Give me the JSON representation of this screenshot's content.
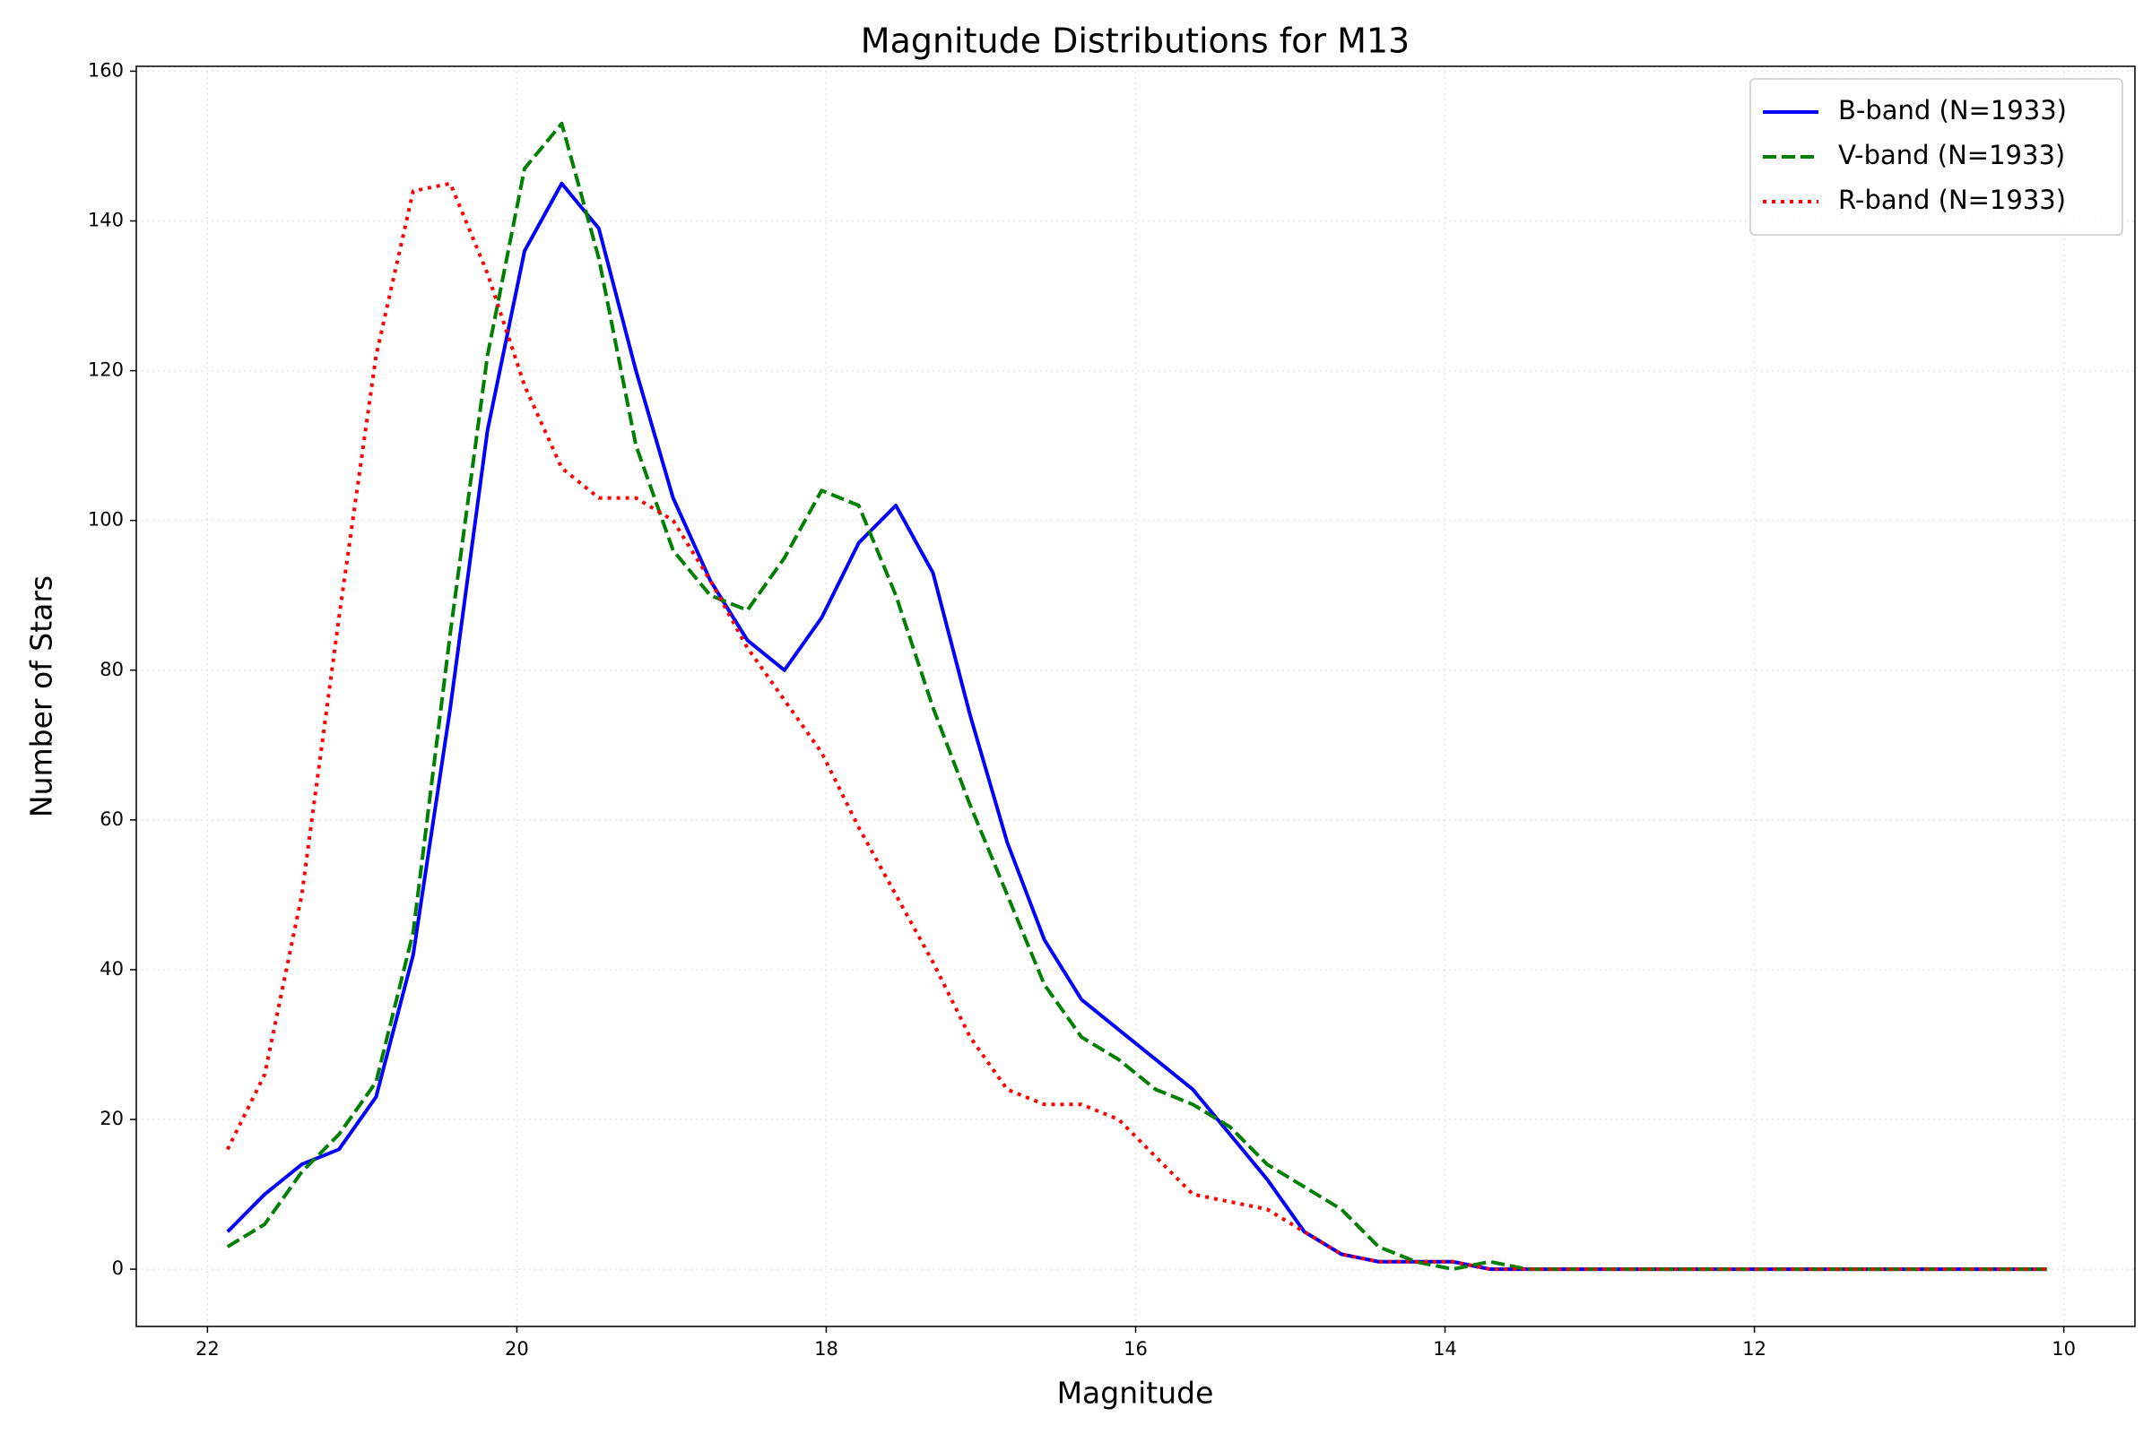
{
  "chart_data": {
    "type": "line",
    "title": "Magnitude Distributions for M13",
    "x_label": "Magnitude",
    "y_label": "Number of Stars",
    "x": [
      21.87,
      21.63,
      21.39,
      21.15,
      20.91,
      20.67,
      20.43,
      20.19,
      19.95,
      19.71,
      19.47,
      19.23,
      18.99,
      18.75,
      18.51,
      18.27,
      18.03,
      17.79,
      17.55,
      17.31,
      17.07,
      16.83,
      16.59,
      16.35,
      16.11,
      15.87,
      15.63,
      15.39,
      15.15,
      14.91,
      14.67,
      14.43,
      14.19,
      13.95,
      13.71,
      13.47,
      13.23,
      12.99,
      12.75,
      12.51,
      12.27,
      12.03,
      11.79,
      11.55,
      11.31,
      11.07,
      10.83,
      10.59,
      10.35,
      10.11
    ],
    "series": [
      {
        "name": "B-band (N=1933)",
        "color": "#0000ff",
        "linestyle": "solid",
        "values": [
          5,
          10,
          14,
          16,
          23,
          42,
          75,
          112,
          136,
          145,
          139,
          120,
          103,
          92,
          84,
          80,
          87,
          97,
          102,
          93,
          74,
          57,
          44,
          36,
          32,
          28,
          24,
          18,
          12,
          5,
          2,
          1,
          1,
          1,
          0,
          0,
          0,
          0,
          0,
          0,
          0,
          0,
          0,
          0,
          0,
          0,
          0,
          0,
          0,
          0
        ]
      },
      {
        "name": "V-band (N=1933)",
        "color": "#008000",
        "linestyle": "dashed",
        "values": [
          3,
          6,
          13,
          18,
          25,
          45,
          85,
          122,
          147,
          153,
          135,
          110,
          96,
          90,
          88,
          95,
          104,
          102,
          90,
          75,
          62,
          50,
          38,
          31,
          28,
          24,
          22,
          19,
          14,
          11,
          8,
          3,
          1,
          0,
          1,
          0,
          0,
          0,
          0,
          0,
          0,
          0,
          0,
          0,
          0,
          0,
          0,
          0,
          0,
          0
        ]
      },
      {
        "name": "R-band (N=1933)",
        "color": "#ff0000",
        "linestyle": "dotted",
        "values": [
          16,
          26,
          50,
          87,
          122,
          144,
          145,
          133,
          118,
          107,
          103,
          103,
          100,
          92,
          83,
          76,
          69,
          59,
          50,
          41,
          31,
          24,
          22,
          22,
          20,
          15,
          10,
          9,
          8,
          5,
          2,
          1,
          1,
          1,
          0,
          0,
          0,
          0,
          0,
          0,
          0,
          0,
          0,
          0,
          0,
          0,
          0,
          0,
          0,
          0
        ]
      }
    ],
    "xlim": [
      22.46,
      9.54
    ],
    "xticks": [
      22,
      20,
      18,
      16,
      14,
      12,
      10
    ],
    "ylim": [
      -7.65,
      160.65
    ],
    "yticks": [
      0,
      20,
      40,
      60,
      80,
      100,
      120,
      140,
      160
    ],
    "grid": true,
    "legend": "upper right"
  }
}
